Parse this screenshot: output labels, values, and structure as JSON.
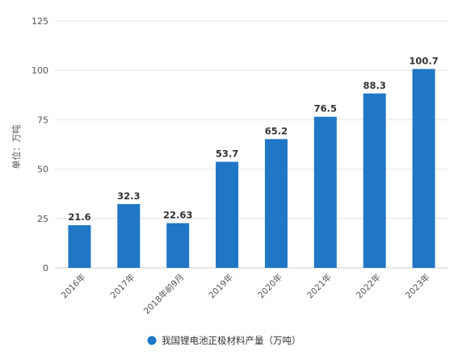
{
  "chart_data": {
    "type": "bar",
    "ylabel": "单位：万吨",
    "categories": [
      "2016年",
      "2017年",
      "2018年前9月",
      "2019年",
      "2020年",
      "2021年",
      "2022年",
      "2023年"
    ],
    "series": [
      {
        "name": "我国锂电池正极材料产量（万吨）",
        "values": [
          21.6,
          32.3,
          22.63,
          53.7,
          65.2,
          76.5,
          88.3,
          100.7
        ],
        "labels": [
          "21.6",
          "32.3",
          "22.63",
          "53.7",
          "65.2",
          "76.5",
          "88.3",
          "100.7"
        ],
        "color": "#1f77c6"
      }
    ],
    "ylim": [
      0,
      125
    ],
    "yticks": [
      "0",
      "25",
      "50",
      "75",
      "100",
      "125"
    ],
    "grid": true,
    "legend_position": "bottom"
  }
}
